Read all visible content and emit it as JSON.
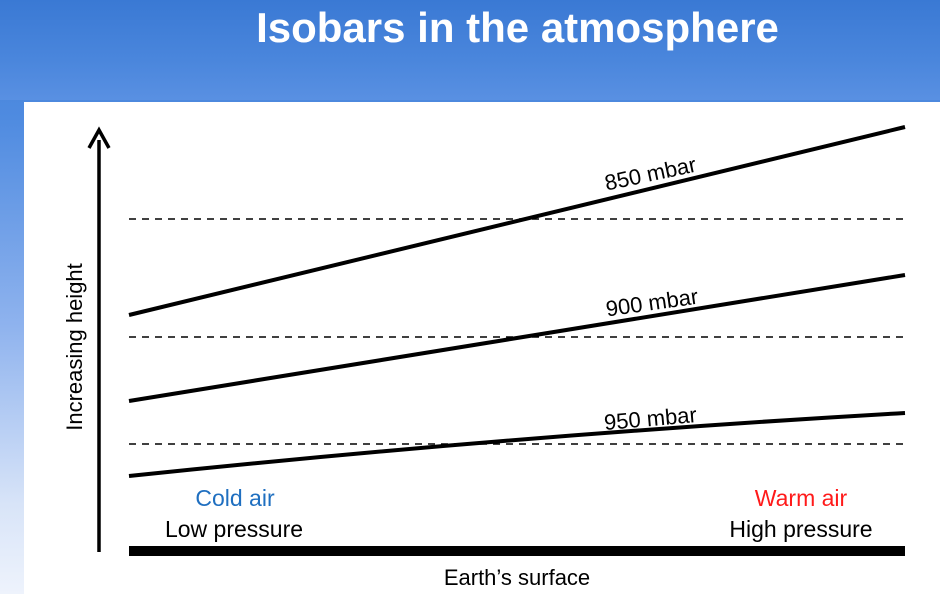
{
  "slide": {
    "title": "Isobars in the atmosphere"
  },
  "diagram": {
    "y_axis_label": "Increasing height",
    "surface_label": "Earth’s surface",
    "isobars": [
      {
        "label": "850 mbar"
      },
      {
        "label": "900 mbar"
      },
      {
        "label": "950 mbar"
      }
    ],
    "left_side": {
      "air_label": "Cold air",
      "pressure_label": "Low pressure",
      "air_color": "#1f6fc0"
    },
    "right_side": {
      "air_label": "Warm air",
      "pressure_label": "High pressure",
      "air_color": "#ff1a1a"
    }
  }
}
